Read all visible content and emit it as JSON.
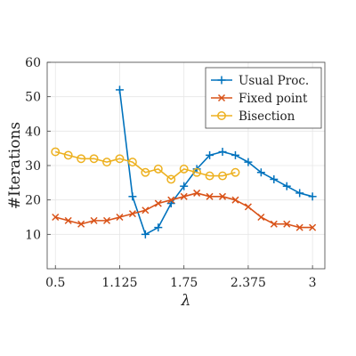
{
  "chart_data": {
    "type": "line",
    "xlabel": "λ",
    "ylabel": "#Iterations",
    "xlim": [
      0.42,
      3.12
    ],
    "ylim": [
      0,
      60
    ],
    "xticks": [
      "0.5",
      "1.125",
      "1.75",
      "2.375",
      "3"
    ],
    "yticks": [
      "10",
      "20",
      "30",
      "40",
      "50",
      "60"
    ],
    "grid": true,
    "legend_position": "top-right",
    "series": [
      {
        "name": "Usual Proc.",
        "color": "#0072bd",
        "marker": "plus",
        "x": [
          1.125,
          1.25,
          1.375,
          1.5,
          1.625,
          1.75,
          1.875,
          2.0,
          2.125,
          2.25,
          2.375,
          2.5,
          2.625,
          2.75,
          2.875,
          3.0
        ],
        "y": [
          52,
          21,
          10,
          12,
          19,
          24,
          29,
          33,
          34,
          33,
          31,
          28,
          26,
          24,
          22,
          21
        ]
      },
      {
        "name": "Fixed point",
        "color": "#d95319",
        "marker": "x",
        "x": [
          0.5,
          0.625,
          0.75,
          0.875,
          1.0,
          1.125,
          1.25,
          1.375,
          1.5,
          1.625,
          1.75,
          1.875,
          2.0,
          2.125,
          2.25,
          2.375,
          2.5,
          2.625,
          2.75,
          2.875,
          3.0
        ],
        "y": [
          15,
          14,
          13,
          14,
          14,
          15,
          16,
          17,
          19,
          20,
          21,
          22,
          21,
          21,
          20,
          18,
          15,
          13,
          13,
          12,
          12
        ]
      },
      {
        "name": "Bisection",
        "color": "#edb120",
        "marker": "circle",
        "x": [
          0.5,
          0.625,
          0.75,
          0.875,
          1.0,
          1.125,
          1.25,
          1.375,
          1.5,
          1.625,
          1.75,
          1.875,
          2.0,
          2.125,
          2.25
        ],
        "y": [
          34,
          33,
          32,
          32,
          31,
          32,
          31,
          28,
          29,
          26,
          29,
          28,
          27,
          27,
          28
        ]
      }
    ]
  }
}
